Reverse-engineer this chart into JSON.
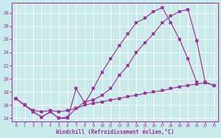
{
  "background_color": "#c8eaea",
  "grid_color": "#b0d8d8",
  "line_color": "#993399",
  "xlabel": "Windchill (Refroidissement éolien,°C)",
  "xlabel_color": "#993399",
  "tick_color": "#993399",
  "xlim": [
    -0.5,
    23.5
  ],
  "ylim": [
    13.5,
    31.5
  ],
  "yticks": [
    14,
    16,
    18,
    20,
    22,
    24,
    26,
    28,
    30
  ],
  "xticks": [
    0,
    1,
    2,
    3,
    4,
    5,
    6,
    7,
    8,
    9,
    10,
    11,
    12,
    13,
    14,
    15,
    16,
    17,
    18,
    19,
    20,
    21,
    22,
    23
  ],
  "line1_x": [
    0,
    1,
    2,
    3,
    4,
    5,
    6,
    7,
    8,
    9,
    10,
    11,
    12,
    13,
    14,
    15,
    16,
    17,
    18,
    19,
    20,
    21
  ],
  "line1_y": [
    17.0,
    16.0,
    15.0,
    14.2,
    15.0,
    14.0,
    14.0,
    18.5,
    16.3,
    18.5,
    21.0,
    23.0,
    25.0,
    26.8,
    28.5,
    29.2,
    30.2,
    30.8,
    28.5,
    26.0,
    23.0,
    19.5
  ],
  "line2_x": [
    0,
    1,
    2,
    3,
    4,
    5,
    6,
    7,
    8,
    9,
    10,
    11,
    12,
    13,
    14,
    15,
    16,
    17,
    18,
    19,
    20,
    21,
    22,
    23
  ],
  "line2_y": [
    17.0,
    16.0,
    15.0,
    14.2,
    15.0,
    14.0,
    14.2,
    15.5,
    16.5,
    16.8,
    17.5,
    18.5,
    20.5,
    22.0,
    24.0,
    25.5,
    26.8,
    28.5,
    29.5,
    30.2,
    30.5,
    25.8,
    19.5,
    19.0
  ],
  "line3_x": [
    0,
    1,
    2,
    3,
    4,
    5,
    6,
    7,
    8,
    9,
    10,
    11,
    12,
    13,
    14,
    15,
    16,
    17,
    18,
    19,
    20,
    21,
    22,
    23
  ],
  "line3_y": [
    17.0,
    16.0,
    15.2,
    15.0,
    15.2,
    15.0,
    15.2,
    15.5,
    16.0,
    16.3,
    16.5,
    16.8,
    17.0,
    17.3,
    17.5,
    17.8,
    18.0,
    18.2,
    18.5,
    18.8,
    19.0,
    19.2,
    19.4,
    19.0
  ]
}
